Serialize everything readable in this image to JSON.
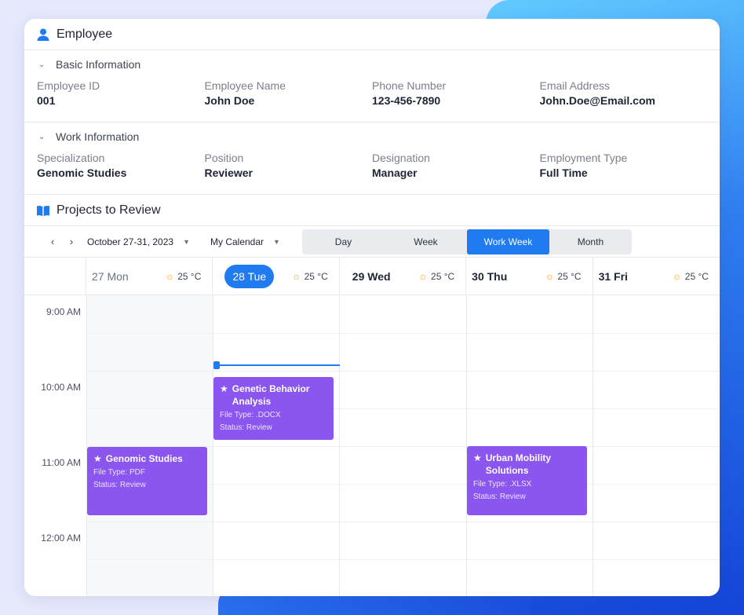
{
  "employee": {
    "title": "Employee",
    "basic": {
      "heading": "Basic Information",
      "fields": [
        {
          "label": "Employee ID",
          "value": "001"
        },
        {
          "label": "Employee Name",
          "value": "John Doe"
        },
        {
          "label": "Phone Number",
          "value": "123-456-7890"
        },
        {
          "label": "Email Address",
          "value": "John.Doe@Email.com"
        }
      ]
    },
    "work": {
      "heading": "Work Information",
      "fields": [
        {
          "label": "Specialization",
          "value": "Genomic Studies"
        },
        {
          "label": "Position",
          "value": "Reviewer"
        },
        {
          "label": "Designation",
          "value": "Manager"
        },
        {
          "label": "Employment Type",
          "value": "Full Time"
        }
      ]
    }
  },
  "projects": {
    "title": "Projects to Review",
    "toolbar": {
      "prev": "‹",
      "next": "›",
      "date_range": "October 27-31, 2023",
      "calendar": "My Calendar",
      "views": [
        "Day",
        "Week",
        "Work Week",
        "Month"
      ],
      "active_view": "Work Week"
    },
    "days": [
      {
        "label": "27 Mon",
        "temp": "25 °C"
      },
      {
        "label": "28 Tue",
        "temp": "25 °C"
      },
      {
        "label": "29 Wed",
        "temp": "25 °C"
      },
      {
        "label": "30 Thu",
        "temp": "25 °C"
      },
      {
        "label": "31 Fri",
        "temp": "25 °C"
      }
    ],
    "times": [
      "9:00 AM",
      "10:00 AM",
      "11:00 AM",
      "12:00 AM"
    ],
    "events": [
      {
        "title": "Genetic Behavior Analysis",
        "file_type": "File Type: .DOCX",
        "status": "Status: Review"
      },
      {
        "title": "Genomic Studies",
        "file_type": "File Type: PDF",
        "status": "Status: Review"
      },
      {
        "title": "Urban Mobility Solutions",
        "file_type": "File Type: .XLSX",
        "status": "Status: Review"
      }
    ]
  },
  "colors": {
    "accent": "#1f7bef",
    "event": "#8b55f0",
    "sun": "#f4a020"
  }
}
